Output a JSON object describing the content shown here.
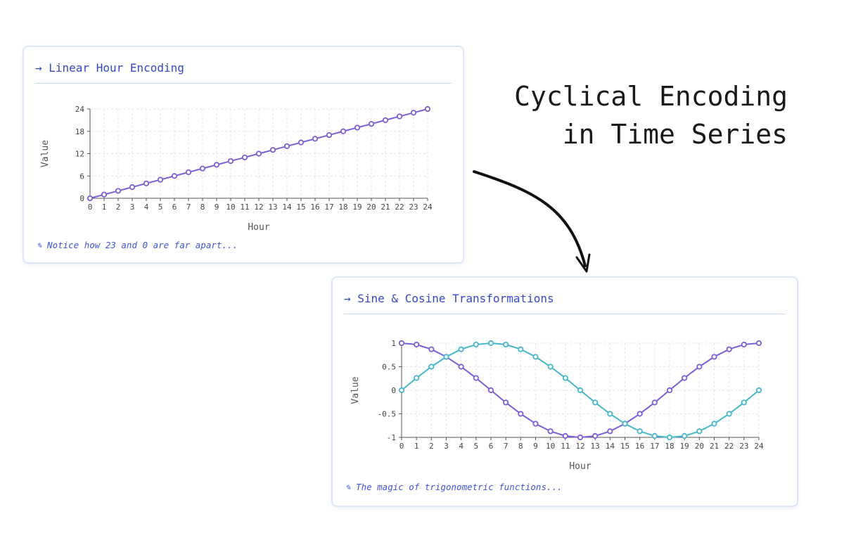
{
  "headline": {
    "line1": "Cyclical Encoding",
    "line2": "in Time Series"
  },
  "colors": {
    "title": "#3347c9",
    "purple_series": "#7b5fd6",
    "cyan_series": "#45b7c9",
    "grid": "#e3e3e3",
    "axis": "#555555"
  },
  "cards": {
    "linear": {
      "title": "→ Linear Hour Encoding",
      "note": "✎ Notice how 23 and 0 are far apart..."
    },
    "trig": {
      "title": "→ Sine & Cosine Transformations",
      "note": "✎ The magic of trigonometric functions..."
    }
  },
  "chart_data": [
    {
      "type": "line",
      "xlabel": "Hour",
      "ylabel": "Value",
      "x": [
        0,
        1,
        2,
        3,
        4,
        5,
        6,
        7,
        8,
        9,
        10,
        11,
        12,
        13,
        14,
        15,
        16,
        17,
        18,
        19,
        20,
        21,
        22,
        23,
        24
      ],
      "xlim": [
        0,
        24
      ],
      "ylim": [
        0,
        24
      ],
      "yticks": [
        0,
        6,
        12,
        18,
        24
      ],
      "ytick_labels": [
        "0",
        "6",
        "12",
        "18",
        "24"
      ],
      "grid": true,
      "series": [
        {
          "color": "#7b5fd6",
          "values": [
            0,
            1,
            2,
            3,
            4,
            5,
            6,
            7,
            8,
            9,
            10,
            11,
            12,
            13,
            14,
            15,
            16,
            17,
            18,
            19,
            20,
            21,
            22,
            23,
            24
          ]
        }
      ]
    },
    {
      "type": "line",
      "xlabel": "Hour",
      "ylabel": "Value",
      "x": [
        0,
        1,
        2,
        3,
        4,
        5,
        6,
        7,
        8,
        9,
        10,
        11,
        12,
        13,
        14,
        15,
        16,
        17,
        18,
        19,
        20,
        21,
        22,
        23,
        24
      ],
      "xlim": [
        0,
        24
      ],
      "ylim": [
        -1,
        1
      ],
      "yticks": [
        -1,
        -0.5,
        0,
        0.5,
        1
      ],
      "ytick_labels": [
        "-1",
        "-0.5",
        "0",
        "0.5",
        "1"
      ],
      "grid": true,
      "series": [
        {
          "color": "#7b5fd6",
          "values": [
            1,
            0.97,
            0.87,
            0.71,
            0.5,
            0.26,
            0,
            -0.26,
            -0.5,
            -0.71,
            -0.87,
            -0.97,
            -1,
            -0.97,
            -0.87,
            -0.71,
            -0.5,
            -0.26,
            0,
            0.26,
            0.5,
            0.71,
            0.87,
            0.97,
            1
          ]
        },
        {
          "color": "#45b7c9",
          "values": [
            0,
            0.26,
            0.5,
            0.71,
            0.87,
            0.97,
            1,
            0.97,
            0.87,
            0.71,
            0.5,
            0.26,
            0,
            -0.26,
            -0.5,
            -0.71,
            -0.87,
            -0.97,
            -1,
            -0.97,
            -0.87,
            -0.71,
            -0.5,
            -0.26,
            0
          ]
        }
      ]
    }
  ]
}
